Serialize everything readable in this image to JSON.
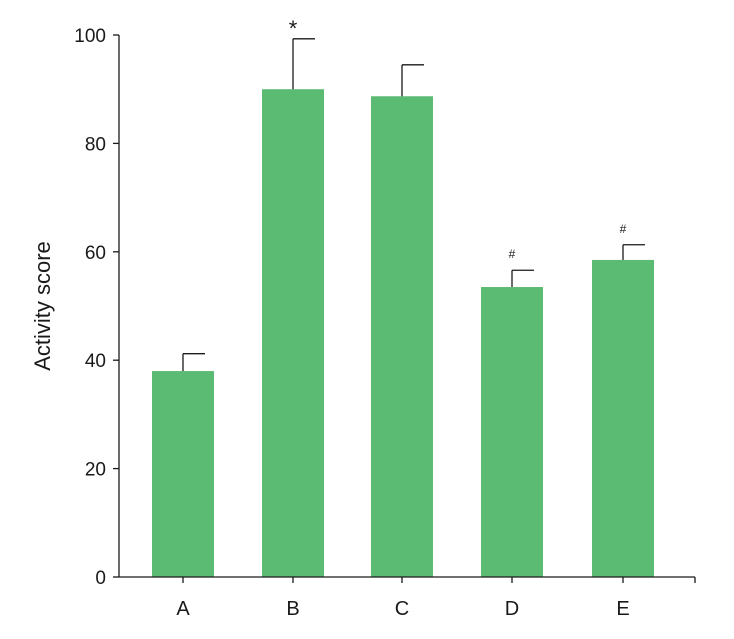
{
  "chart_data": {
    "type": "bar",
    "title": "",
    "xlabel": "",
    "ylabel": "Activity score",
    "ylim": [
      0,
      100
    ],
    "yticks": [
      0,
      20,
      40,
      60,
      80,
      100
    ],
    "categories": [
      "A",
      "B",
      "C",
      "D",
      "E"
    ],
    "values": [
      38,
      90,
      88.7,
      53.5,
      58.5
    ],
    "errors": [
      3.2,
      9.3,
      5.8,
      3.1,
      2.8
    ],
    "annotations": [
      "",
      "*",
      "",
      "#",
      "#"
    ],
    "grid": false,
    "legend": "none",
    "bar_color": "#5bbb73",
    "axis_color": "#1a1a1a"
  }
}
